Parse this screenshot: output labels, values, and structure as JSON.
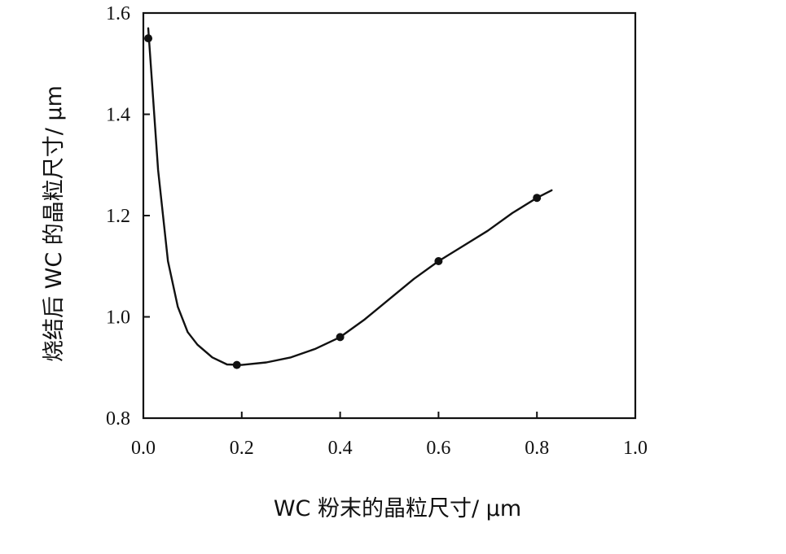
{
  "chart_data": {
    "type": "line",
    "title": "",
    "xlabel": "WC 粉末的晶粒尺寸/ μm",
    "ylabel": "烧结后 WC 的晶粒尺寸/ μm",
    "xlim": [
      0.0,
      1.0
    ],
    "ylim": [
      0.8,
      1.6
    ],
    "x_ticks": [
      "0.0",
      "0.2",
      "0.4",
      "0.6",
      "0.8",
      "1.0"
    ],
    "y_ticks": [
      "0.8",
      "1.0",
      "1.2",
      "1.4",
      "1.6"
    ],
    "grid": false,
    "series": [
      {
        "points": [
          {
            "x": 0.01,
            "y": 1.55
          },
          {
            "x": 0.19,
            "y": 0.905
          },
          {
            "x": 0.4,
            "y": 0.96
          },
          {
            "x": 0.6,
            "y": 1.11
          },
          {
            "x": 0.8,
            "y": 1.235
          }
        ],
        "curve": [
          [
            0.01,
            1.57
          ],
          [
            0.03,
            1.29
          ],
          [
            0.05,
            1.11
          ],
          [
            0.07,
            1.02
          ],
          [
            0.09,
            0.97
          ],
          [
            0.11,
            0.945
          ],
          [
            0.14,
            0.92
          ],
          [
            0.17,
            0.906
          ],
          [
            0.2,
            0.905
          ],
          [
            0.25,
            0.91
          ],
          [
            0.3,
            0.92
          ],
          [
            0.35,
            0.937
          ],
          [
            0.4,
            0.96
          ],
          [
            0.45,
            0.995
          ],
          [
            0.5,
            1.035
          ],
          [
            0.55,
            1.075
          ],
          [
            0.6,
            1.11
          ],
          [
            0.65,
            1.14
          ],
          [
            0.7,
            1.17
          ],
          [
            0.75,
            1.205
          ],
          [
            0.8,
            1.235
          ],
          [
            0.83,
            1.25
          ]
        ],
        "color": "#111111"
      }
    ]
  }
}
